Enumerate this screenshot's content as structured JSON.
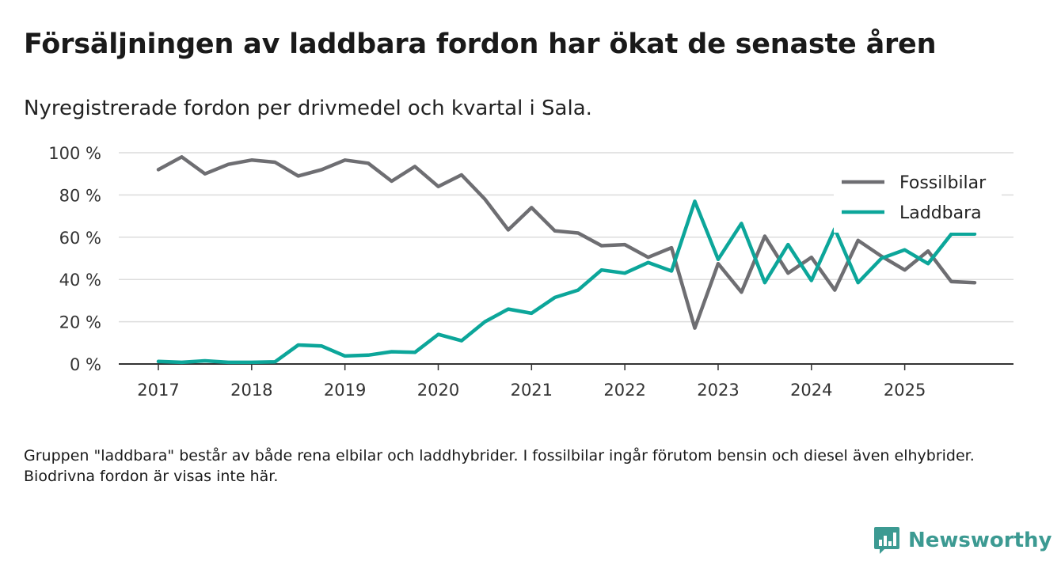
{
  "title": "Försäljningen av laddbara fordon har ökat de senaste åren",
  "subtitle": "Nyregistrerade fordon per drivmedel och kvartal i Sala.",
  "note": "Gruppen \"laddbara\" består av både rena elbilar och laddhybrider. I fossilbilar ingår förutom bensin och diesel även elhybrider. Biodrivna fordon är visas inte här.",
  "brand": {
    "name": "Newsworthy",
    "icon": "newsworthy-logo-icon",
    "color": "#3c9a92"
  },
  "chart_data": {
    "type": "line",
    "title": "Försäljningen av laddbara fordon har ökat de senaste åren",
    "xlabel": "",
    "ylabel": "",
    "ylim": [
      0,
      100
    ],
    "yticks": [
      0,
      20,
      40,
      60,
      80,
      100
    ],
    "ytick_labels": [
      "0 %",
      "20 %",
      "40 %",
      "60 %",
      "80 %",
      "100 %"
    ],
    "xlim": [
      2017,
      2025.75
    ],
    "xticks": [
      2017,
      2018,
      2019,
      2020,
      2021,
      2022,
      2023,
      2024,
      2025
    ],
    "xtick_labels": [
      "2017",
      "2018",
      "2019",
      "2020",
      "2021",
      "2022",
      "2023",
      "2024",
      "2025"
    ],
    "grid": true,
    "legend_position": "top-right",
    "x": [
      2017,
      2017.25,
      2017.5,
      2017.75,
      2018,
      2018.25,
      2018.5,
      2018.75,
      2019,
      2019.25,
      2019.5,
      2019.75,
      2020,
      2020.25,
      2020.5,
      2020.75,
      2021,
      2021.25,
      2021.5,
      2021.75,
      2022,
      2022.25,
      2022.5,
      2022.75,
      2023,
      2023.25,
      2023.5,
      2023.75,
      2024,
      2024.25,
      2024.5,
      2024.75,
      2025,
      2025.25,
      2025.5,
      2025.75
    ],
    "series": [
      {
        "name": "Fossilbilar",
        "color": "#6e6e72",
        "values": [
          92,
          98,
          90,
          94.5,
          96.5,
          95.5,
          89,
          92,
          96.5,
          95,
          86.5,
          93.5,
          84,
          89.5,
          78,
          63.5,
          74,
          63,
          62,
          56,
          56.5,
          50.5,
          55,
          17,
          47.5,
          34,
          60.5,
          43,
          50.5,
          35,
          58.5,
          51,
          44.5,
          53.5,
          39,
          38.5
        ]
      },
      {
        "name": "Laddbara",
        "color": "#0ca69a",
        "values": [
          1.2,
          0.8,
          1.5,
          0.8,
          0.8,
          1,
          9,
          8.5,
          3.8,
          4.2,
          5.8,
          5.5,
          14,
          11,
          20,
          26,
          24,
          31.5,
          35,
          44.5,
          43,
          48,
          44,
          77,
          49.5,
          66.5,
          38.5,
          56.5,
          39.5,
          64,
          38.5,
          50,
          54,
          47.5,
          61.5,
          61.5
        ]
      }
    ]
  }
}
